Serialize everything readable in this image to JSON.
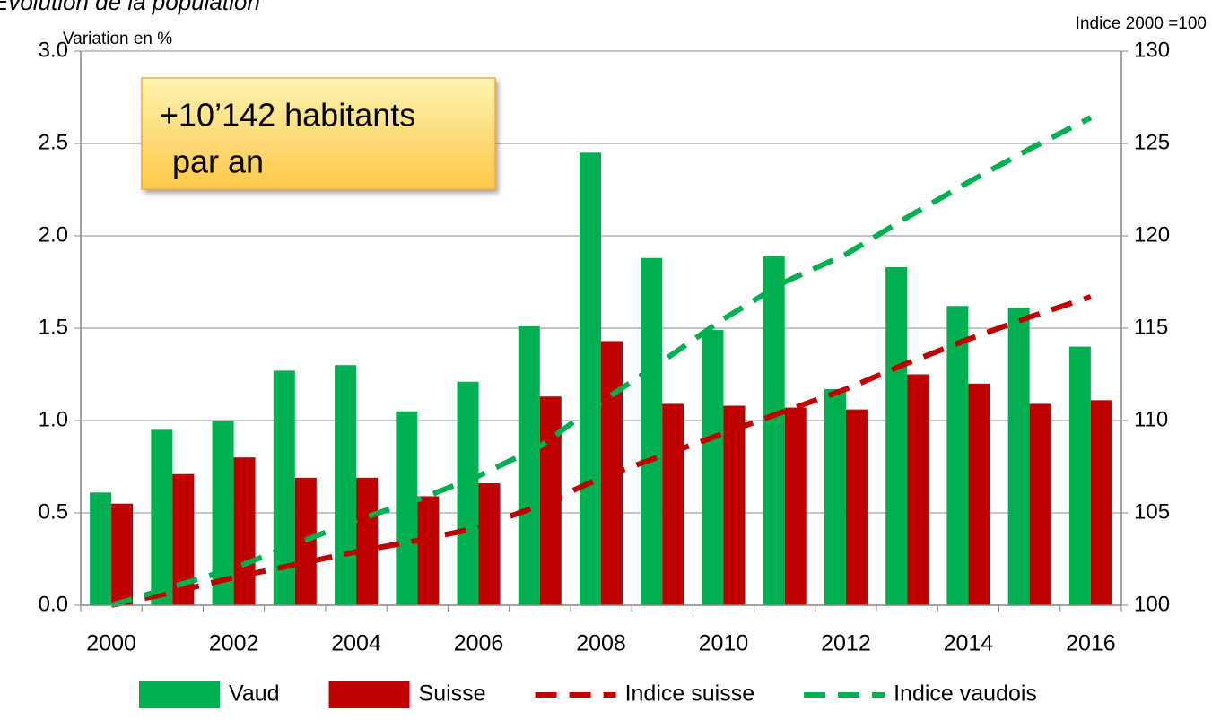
{
  "chart_data": {
    "type": "bar",
    "title": "Évolution de la population",
    "y_label": "Variation en %",
    "y2_label": "Indice 2000 =100",
    "annotations": [
      "+10’142 habitants",
      "par an"
    ],
    "categories": [
      "2000",
      null,
      "2002",
      null,
      "2004",
      null,
      "2006",
      null,
      "2008",
      null,
      "2010",
      null,
      "2012",
      null,
      "2014",
      null,
      "2016"
    ],
    "series": [
      {
        "name": "Vaud",
        "type": "bar",
        "color": "#00b050",
        "values": [
          0.61,
          0.95,
          1.0,
          1.27,
          1.3,
          1.05,
          1.21,
          1.51,
          2.45,
          1.88,
          1.49,
          1.89,
          1.17,
          1.83,
          1.62,
          1.61,
          1.4
        ]
      },
      {
        "name": "Suisse",
        "type": "bar",
        "color": "#c00000",
        "values": [
          0.55,
          0.71,
          0.8,
          0.69,
          0.69,
          0.59,
          0.66,
          1.13,
          1.43,
          1.09,
          1.08,
          1.07,
          1.06,
          1.25,
          1.2,
          1.09,
          1.11
        ]
      },
      {
        "name": "Indice suisse",
        "type": "line",
        "axis": "y2",
        "dashed": true,
        "color": "#c00000",
        "values": [
          100,
          100.7,
          101.5,
          102.2,
          102.9,
          103.5,
          104.2,
          105.4,
          106.9,
          108.1,
          109.3,
          110.5,
          111.7,
          113.1,
          114.4,
          115.6,
          116.7
        ]
      },
      {
        "name": "Indice vaudois",
        "type": "line",
        "axis": "y2",
        "dashed": true,
        "color": "#00b050",
        "values": [
          100,
          101.0,
          102.0,
          103.3,
          104.6,
          105.7,
          107.0,
          108.6,
          111.0,
          113.2,
          115.5,
          117.5,
          119.0,
          121.0,
          122.9,
          124.7,
          126.4
        ]
      }
    ],
    "ylim": [
      0,
      3
    ],
    "yticks": [
      {
        "value": 0,
        "label": "0.0"
      },
      0.5,
      {
        "value": 1,
        "label": "1.0"
      },
      1.5,
      {
        "value": 2,
        "label": "2.0"
      },
      2.5,
      {
        "value": 3,
        "label": "3.0"
      }
    ],
    "y2lim": [
      100,
      130
    ],
    "y2ticks": [
      100,
      105,
      110,
      115,
      120,
      125,
      130
    ],
    "grid": true,
    "legend": "bottom"
  }
}
